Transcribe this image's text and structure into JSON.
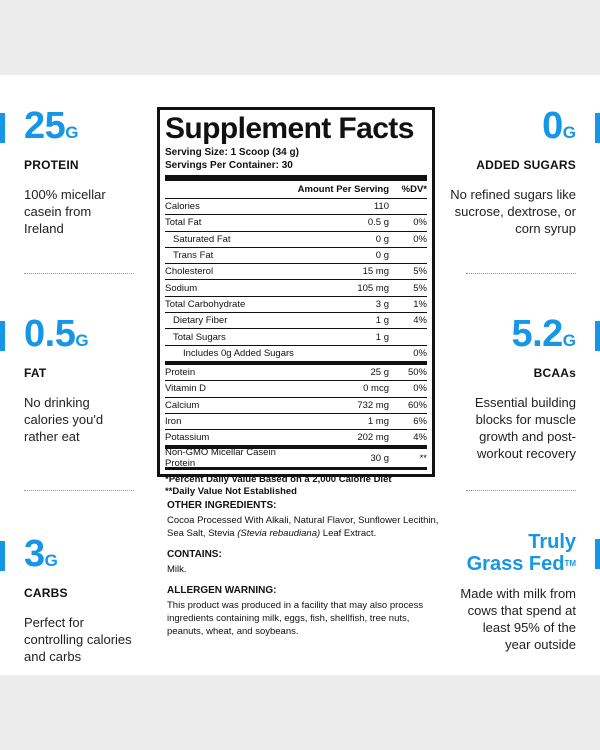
{
  "stats": {
    "protein": {
      "value": "25",
      "unit": "G",
      "label": "PROTEIN",
      "desc": "100% micellar casein from Ireland"
    },
    "fat": {
      "value": "0.5",
      "unit": "G",
      "label": "FAT",
      "desc": "No drinking calories you'd rather eat"
    },
    "carbs": {
      "value": "3",
      "unit": "G",
      "label": "CARBS",
      "desc": "Perfect for controlling calories and carbs"
    },
    "sugars": {
      "value": "0",
      "unit": "G",
      "label": "ADDED SUGARS",
      "desc": "No refined sugars like sucrose, dextrose, or corn syrup"
    },
    "bcaas": {
      "value": "5.2",
      "unit": "G",
      "label": "BCAAs",
      "desc": "Essential building blocks for muscle growth and post-workout recovery"
    },
    "grassfed": {
      "line1": "Truly",
      "line2": "Grass Fed",
      "tm": "TM",
      "desc": "Made with milk from cows that spend at least 95% of the year outside"
    }
  },
  "facts": {
    "title": "Supplement Facts",
    "serving_size": "Serving Size: 1 Scoop (34 g)",
    "servings_per": "Servings Per Container: 30",
    "header_amount": "Amount Per Serving",
    "header_dv": "%DV*",
    "rows": [
      {
        "name": "Calories",
        "amount": "110",
        "dv": ""
      },
      {
        "name": "Total Fat",
        "amount": "0.5 g",
        "dv": "0%"
      },
      {
        "name": "Saturated Fat",
        "amount": "0 g",
        "dv": "0%"
      },
      {
        "name": "Trans Fat",
        "amount": "0 g",
        "dv": ""
      },
      {
        "name": "Cholesterol",
        "amount": "15 mg",
        "dv": "5%"
      },
      {
        "name": "Sodium",
        "amount": "105 mg",
        "dv": "5%"
      },
      {
        "name": "Total Carbohydrate",
        "amount": "3 g",
        "dv": "1%"
      },
      {
        "name": "Dietary Fiber",
        "amount": "1 g",
        "dv": "4%"
      },
      {
        "name": "Total Sugars",
        "amount": "1 g",
        "dv": ""
      },
      {
        "name": "Includes 0g Added Sugars",
        "amount": "",
        "dv": "0%"
      },
      {
        "name": "Protein",
        "amount": "25 g",
        "dv": "50%"
      },
      {
        "name": "Vitamin D",
        "amount": "0 mcg",
        "dv": "0%"
      },
      {
        "name": "Calcium",
        "amount": "732 mg",
        "dv": "60%"
      },
      {
        "name": "Iron",
        "amount": "1 mg",
        "dv": "6%"
      },
      {
        "name": "Potassium",
        "amount": "202 mg",
        "dv": "4%"
      },
      {
        "name": "Non-GMO Micellar Casein Protein",
        "amount": "30 g",
        "dv": "**"
      }
    ],
    "footnote1": "*Percent Daily Value Based on a 2,000 Calorie Diet",
    "footnote2": "**Daily Value Not Established"
  },
  "ingredients": {
    "other_heading": "OTHER INGREDIENTS:",
    "other_text_1": "Cocoa Processed With Alkali, Natural Flavor, Sunflower Lecithin, Sea Salt, Stevia ",
    "other_text_italic": "(Stevia rebaudiana)",
    "other_text_2": " Leaf Extract.",
    "contains_heading": "CONTAINS:",
    "contains_text": "Milk.",
    "allergen_heading": "ALLERGEN WARNING:",
    "allergen_text": "This product was produced in a facility that may also process ingredients containing milk, eggs, fish, shellfish, tree nuts, peanuts, wheat, and soybeans."
  }
}
